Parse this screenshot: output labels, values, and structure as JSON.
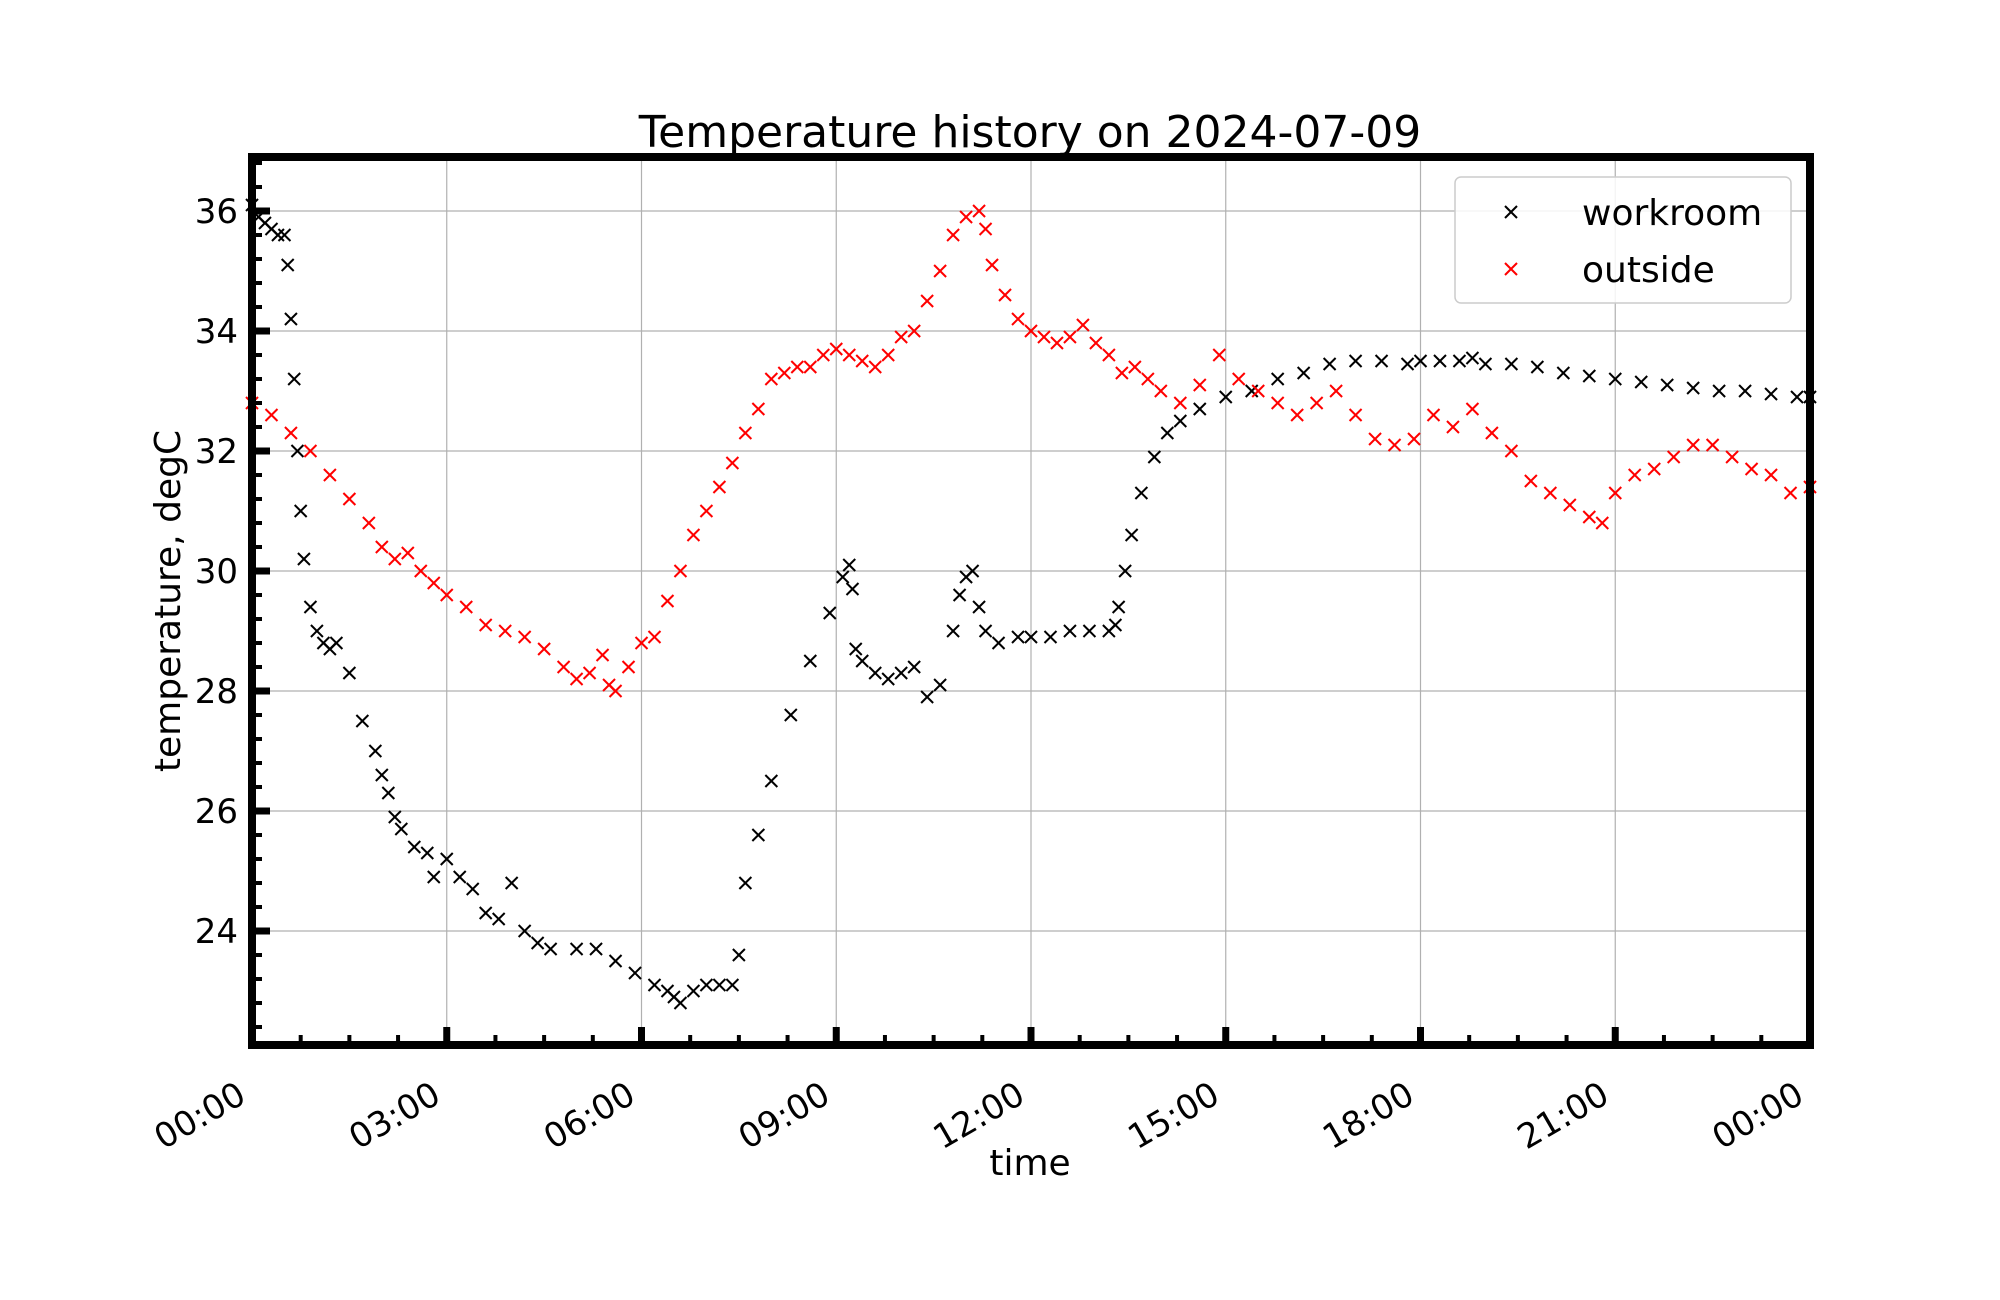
{
  "chart_data": {
    "type": "scatter",
    "title": "Temperature history on 2024-07-09",
    "xlabel": "time",
    "ylabel": "temperature, degC",
    "x_unit": "hours",
    "xlim": [
      0,
      24
    ],
    "ylim": [
      22.1,
      36.9
    ],
    "x_ticks": [
      0,
      3,
      6,
      9,
      12,
      15,
      18,
      21,
      24
    ],
    "x_tick_labels": [
      "00:00",
      "03:00",
      "06:00",
      "09:00",
      "12:00",
      "15:00",
      "18:00",
      "21:00",
      "00:00"
    ],
    "y_ticks": [
      24,
      26,
      28,
      30,
      32,
      34,
      36
    ],
    "y_tick_labels": [
      "24",
      "26",
      "28",
      "30",
      "32",
      "34",
      "36"
    ],
    "grid": true,
    "legend_position": "top-right",
    "marker": "x",
    "series": [
      {
        "name": "workroom",
        "color": "#000000",
        "x": [
          0.0,
          0.1,
          0.2,
          0.3,
          0.4,
          0.5,
          0.55,
          0.6,
          0.65,
          0.7,
          0.75,
          0.8,
          0.9,
          1.0,
          1.1,
          1.2,
          1.3,
          1.5,
          1.7,
          1.9,
          2.0,
          2.1,
          2.2,
          2.3,
          2.5,
          2.7,
          2.8,
          3.0,
          3.2,
          3.4,
          3.6,
          3.8,
          4.0,
          4.2,
          4.4,
          4.6,
          5.0,
          5.3,
          5.6,
          5.9,
          6.2,
          6.4,
          6.5,
          6.6,
          6.8,
          7.0,
          7.2,
          7.4,
          7.5,
          7.6,
          7.8,
          8.0,
          8.3,
          8.6,
          8.9,
          9.1,
          9.2,
          9.25,
          9.3,
          9.4,
          9.6,
          9.8,
          10.0,
          10.2,
          10.4,
          10.6,
          10.8,
          10.9,
          11.0,
          11.1,
          11.2,
          11.3,
          11.5,
          11.8,
          12.0,
          12.3,
          12.6,
          12.9,
          13.2,
          13.3,
          13.35,
          13.45,
          13.55,
          13.7,
          13.9,
          14.1,
          14.3,
          14.6,
          15.0,
          15.4,
          15.8,
          16.2,
          16.6,
          17.0,
          17.4,
          17.8,
          18.0,
          18.3,
          18.6,
          18.8,
          19.0,
          19.4,
          19.8,
          20.2,
          20.6,
          21.0,
          21.4,
          21.8,
          22.2,
          22.6,
          23.0,
          23.4,
          23.8,
          24.0
        ],
        "y": [
          36.1,
          35.9,
          35.8,
          35.7,
          35.6,
          35.6,
          35.1,
          34.2,
          33.2,
          32.0,
          31.0,
          30.2,
          29.4,
          29.0,
          28.8,
          28.7,
          28.8,
          28.3,
          27.5,
          27.0,
          26.6,
          26.3,
          25.9,
          25.7,
          25.4,
          25.3,
          24.9,
          25.2,
          24.9,
          24.7,
          24.3,
          24.2,
          24.8,
          24.0,
          23.8,
          23.7,
          23.7,
          23.7,
          23.5,
          23.3,
          23.1,
          23.0,
          22.9,
          22.8,
          23.0,
          23.1,
          23.1,
          23.1,
          23.6,
          24.8,
          25.6,
          26.5,
          27.6,
          28.5,
          29.3,
          29.9,
          30.1,
          29.7,
          28.7,
          28.5,
          28.3,
          28.2,
          28.3,
          28.4,
          27.9,
          28.1,
          29.0,
          29.6,
          29.9,
          30.0,
          29.4,
          29.0,
          28.8,
          28.9,
          28.9,
          28.9,
          29.0,
          29.0,
          29.0,
          29.1,
          29.4,
          30.0,
          30.6,
          31.3,
          31.9,
          32.3,
          32.5,
          32.7,
          32.9,
          33.0,
          33.2,
          33.3,
          33.45,
          33.5,
          33.5,
          33.45,
          33.5,
          33.5,
          33.5,
          33.55,
          33.45,
          33.45,
          33.4,
          33.3,
          33.25,
          33.2,
          33.15,
          33.1,
          33.05,
          33.0,
          33.0,
          32.95,
          32.9,
          32.9
        ]
      },
      {
        "name": "outside",
        "color": "#ff0000",
        "x": [
          0.0,
          0.3,
          0.6,
          0.9,
          1.2,
          1.5,
          1.8,
          2.0,
          2.2,
          2.4,
          2.6,
          2.8,
          3.0,
          3.3,
          3.6,
          3.9,
          4.2,
          4.5,
          4.8,
          5.0,
          5.2,
          5.4,
          5.5,
          5.6,
          5.8,
          6.0,
          6.2,
          6.4,
          6.6,
          6.8,
          7.0,
          7.2,
          7.4,
          7.6,
          7.8,
          8.0,
          8.2,
          8.4,
          8.6,
          8.8,
          9.0,
          9.2,
          9.4,
          9.6,
          9.8,
          10.0,
          10.2,
          10.4,
          10.6,
          10.8,
          11.0,
          11.2,
          11.3,
          11.4,
          11.6,
          11.8,
          12.0,
          12.2,
          12.4,
          12.6,
          12.8,
          13.0,
          13.2,
          13.4,
          13.6,
          13.8,
          14.0,
          14.3,
          14.6,
          14.9,
          15.2,
          15.5,
          15.8,
          16.1,
          16.4,
          16.7,
          17.0,
          17.3,
          17.6,
          17.9,
          18.2,
          18.5,
          18.8,
          19.1,
          19.4,
          19.7,
          20.0,
          20.3,
          20.6,
          20.8,
          21.0,
          21.3,
          21.6,
          21.9,
          22.2,
          22.5,
          22.8,
          23.1,
          23.4,
          23.7,
          24.0
        ],
        "y": [
          32.8,
          32.6,
          32.3,
          32.0,
          31.6,
          31.2,
          30.8,
          30.4,
          30.2,
          30.3,
          30.0,
          29.8,
          29.6,
          29.4,
          29.1,
          29.0,
          28.9,
          28.7,
          28.4,
          28.2,
          28.3,
          28.6,
          28.1,
          28.0,
          28.4,
          28.8,
          28.9,
          29.5,
          30.0,
          30.6,
          31.0,
          31.4,
          31.8,
          32.3,
          32.7,
          33.2,
          33.3,
          33.4,
          33.4,
          33.6,
          33.7,
          33.6,
          33.5,
          33.4,
          33.6,
          33.9,
          34.0,
          34.5,
          35.0,
          35.6,
          35.9,
          36.0,
          35.7,
          35.1,
          34.6,
          34.2,
          34.0,
          33.9,
          33.8,
          33.9,
          34.1,
          33.8,
          33.6,
          33.3,
          33.4,
          33.2,
          33.0,
          32.8,
          33.1,
          33.6,
          33.2,
          33.0,
          32.8,
          32.6,
          32.8,
          33.0,
          32.6,
          32.2,
          32.1,
          32.2,
          32.6,
          32.4,
          32.7,
          32.3,
          32.0,
          31.5,
          31.3,
          31.1,
          30.9,
          30.8,
          31.3,
          31.6,
          31.7,
          31.9,
          32.1,
          32.1,
          31.9,
          31.7,
          31.6,
          31.3,
          31.4
        ]
      }
    ]
  }
}
